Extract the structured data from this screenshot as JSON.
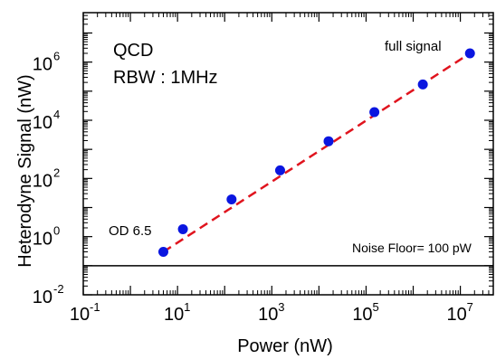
{
  "chart_data": {
    "type": "scatter",
    "xlabel": "Power (nW)",
    "ylabel": "Heterodyne Signal (nW)",
    "x_scale": "log",
    "y_scale": "log",
    "xlim": [
      0.1,
      50000000
    ],
    "ylim": [
      0.01,
      50000000
    ],
    "x_ticks": [
      {
        "mant": "10",
        "exp": "-1",
        "value": 0.1
      },
      {
        "mant": "10",
        "exp": "1",
        "value": 10
      },
      {
        "mant": "10",
        "exp": "3",
        "value": 1000
      },
      {
        "mant": "10",
        "exp": "5",
        "value": 100000
      },
      {
        "mant": "10",
        "exp": "7",
        "value": 10000000
      }
    ],
    "y_ticks": [
      {
        "mant": "10",
        "exp": "-2",
        "value": 0.01
      },
      {
        "mant": "10",
        "exp": "0",
        "value": 1
      },
      {
        "mant": "10",
        "exp": "2",
        "value": 100
      },
      {
        "mant": "10",
        "exp": "4",
        "value": 10000
      },
      {
        "mant": "10",
        "exp": "6",
        "value": 1000000
      }
    ],
    "series": [
      {
        "color": "#0a16e0",
        "x": [
          5,
          13,
          140,
          1500,
          16000,
          150000,
          1600000,
          16000000
        ],
        "y": [
          0.3,
          1.8,
          19,
          190,
          1900,
          19000,
          170000,
          2000000
        ]
      }
    ],
    "fit_line": {
      "color": "#e0141e",
      "style": "dashed",
      "x": [
        5,
        16000000
      ],
      "y": [
        0.3,
        2000000
      ]
    },
    "noise_floor": {
      "label": "Noise Floor= 100 pW",
      "value": 0.1,
      "color": "#000000"
    },
    "annotations": [
      {
        "text": "QCD",
        "anchor": "top-left",
        "color": "#000000"
      },
      {
        "text": "RBW : 1MHz",
        "anchor": "top-left",
        "color": "#000000"
      },
      {
        "text": "OD 6.5",
        "near_point": 0,
        "color": "#1a1ad4"
      },
      {
        "text": "full signal",
        "near_point": 7,
        "color": "#1a1ad4"
      }
    ],
    "grid": false,
    "legend": "none"
  }
}
